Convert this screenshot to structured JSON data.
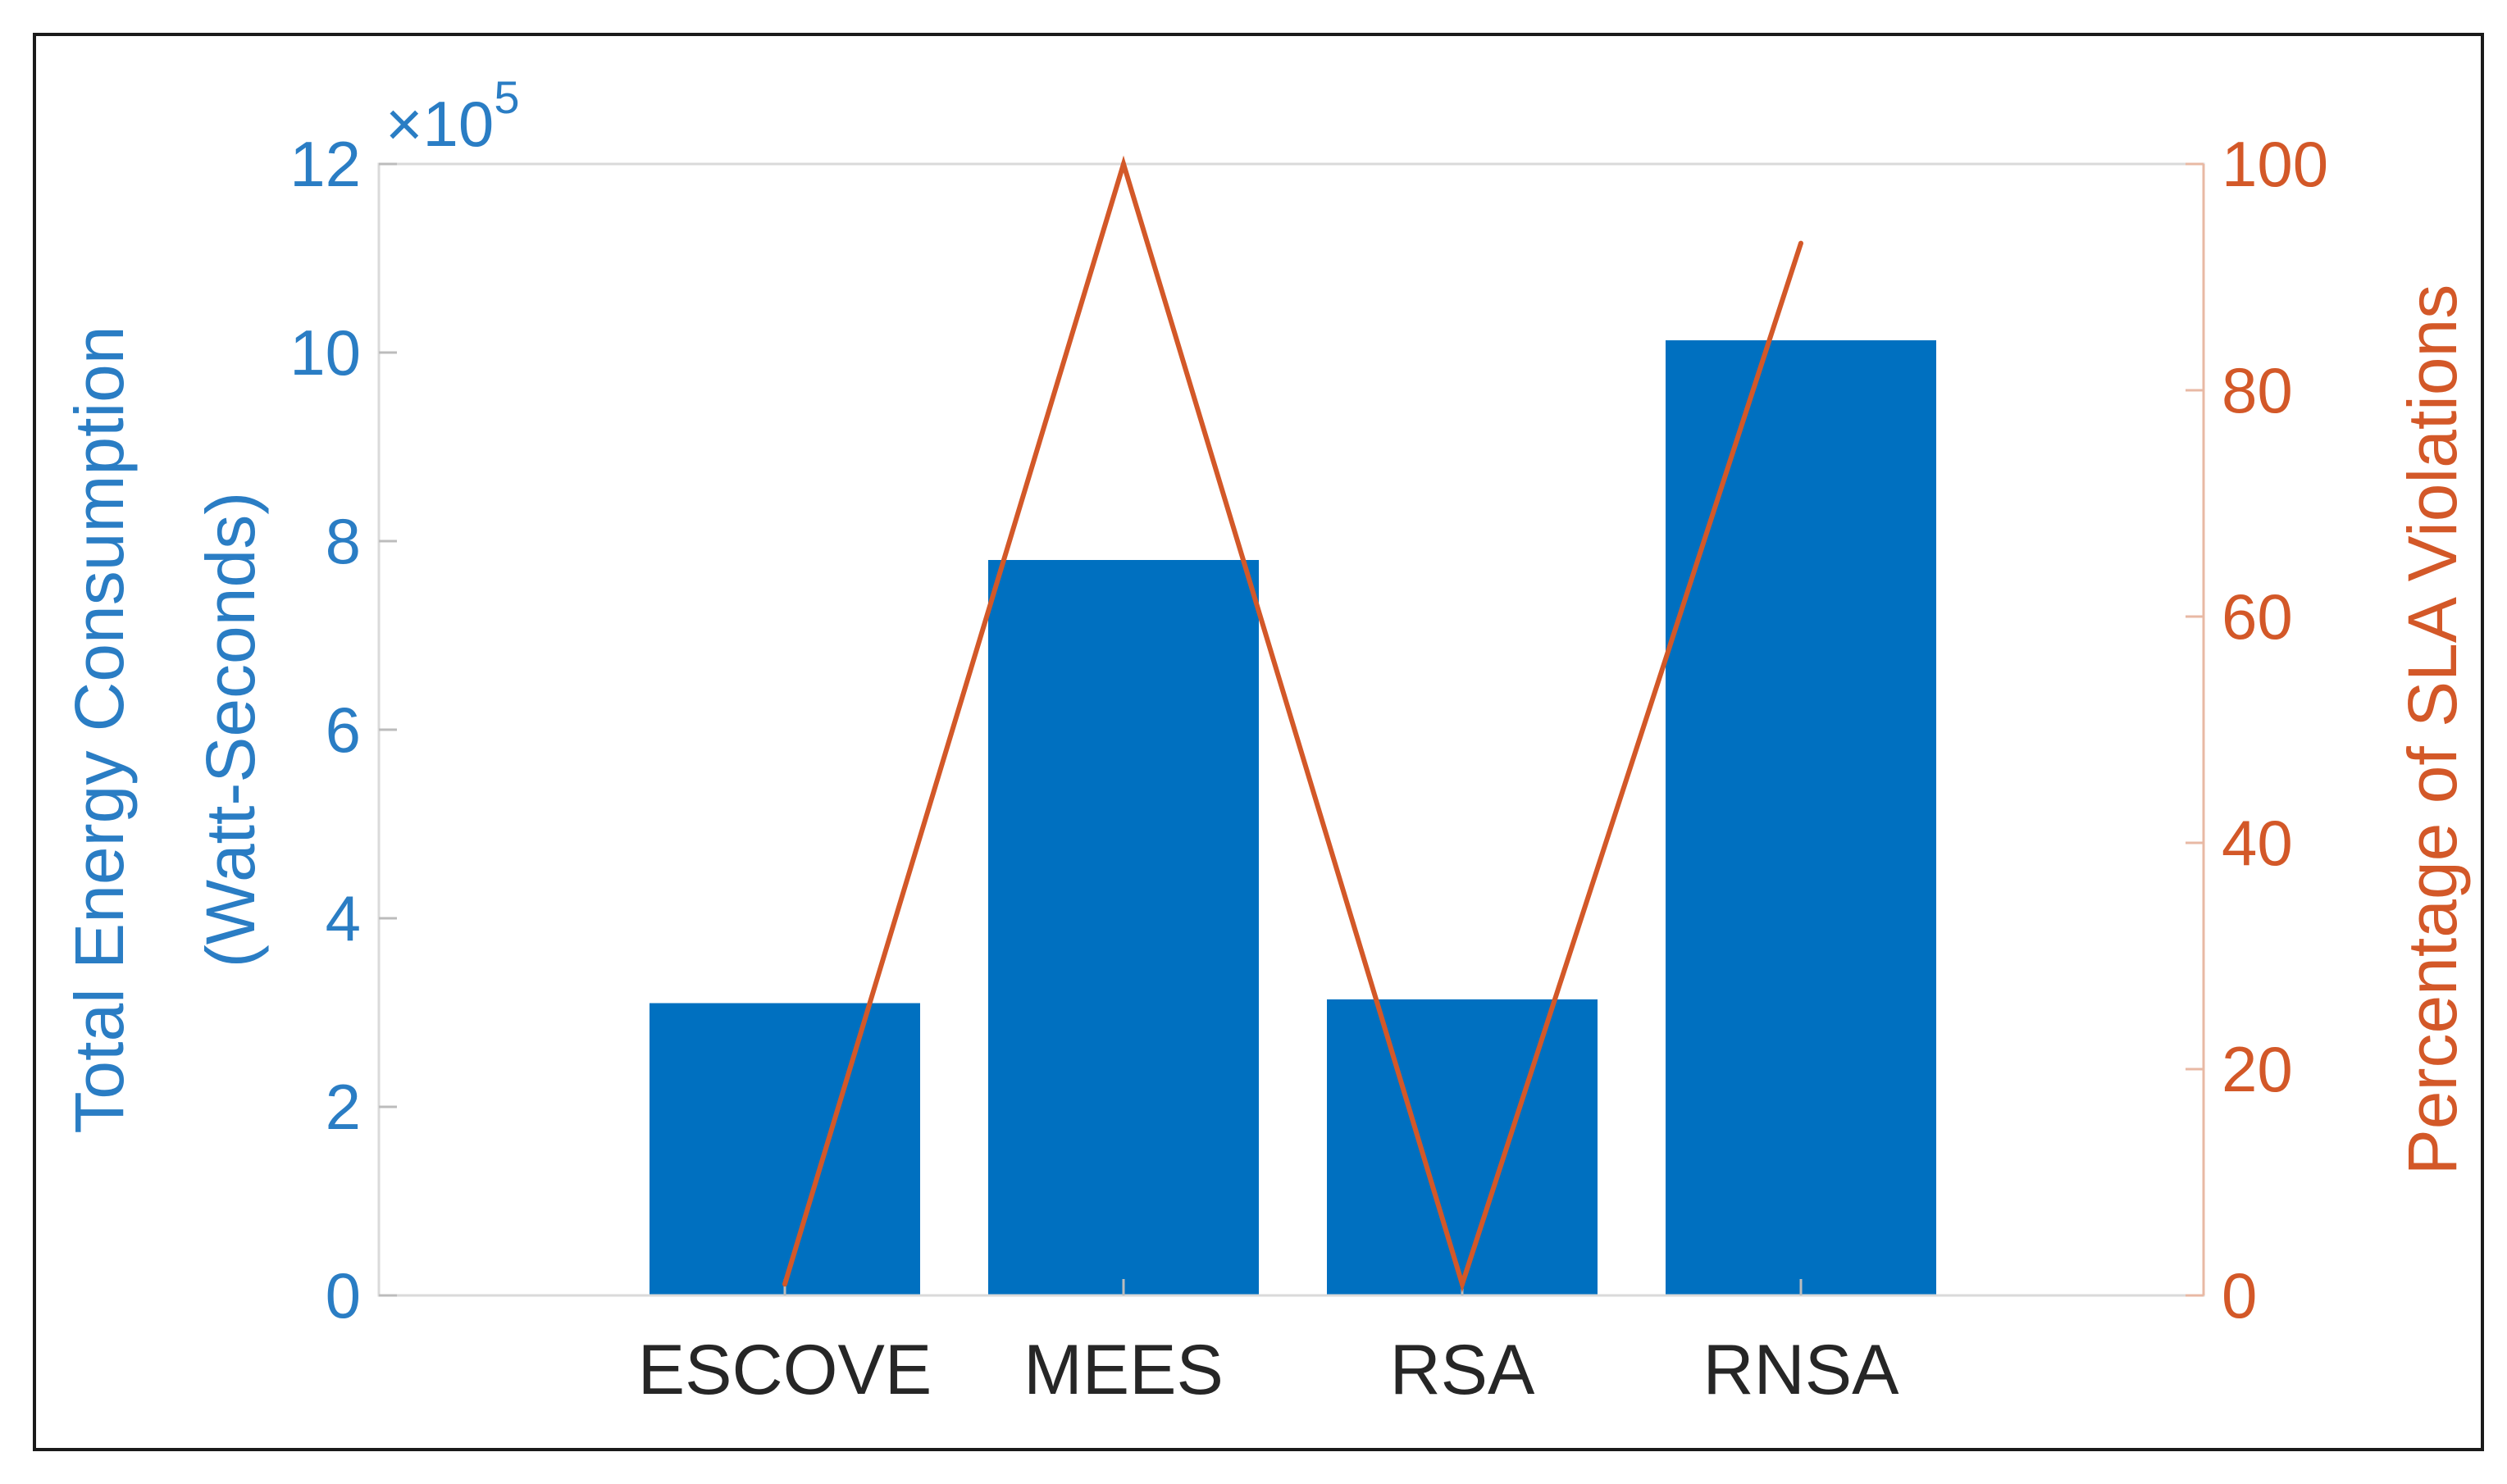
{
  "chart_data": {
    "type": "bar",
    "categories": [
      "ESCOVE",
      "MEES",
      "RSA",
      "RNSA"
    ],
    "series": [
      {
        "name": "",
        "kind": "bar",
        "axis": "left",
        "values": [
          310000,
          780000,
          314000,
          1013000
        ]
      },
      {
        "name": "",
        "kind": "line",
        "axis": "right",
        "values": [
          1,
          100,
          1,
          93
        ]
      }
    ],
    "left_axis": {
      "label_line1": "Total Energy Consumption",
      "label_line2": "(Watt-Seconds)",
      "range": [
        0,
        1200000
      ],
      "tick_values": [
        0,
        2,
        4,
        6,
        8,
        10,
        12
      ],
      "multiplier_base": "×10",
      "multiplier_exp": "5",
      "color": "#2a7dc4"
    },
    "right_axis": {
      "label": "Percentage of SLA Violations",
      "range": [
        0,
        100
      ],
      "tick_values": [
        0,
        20,
        40,
        60,
        80,
        100
      ],
      "color": "#d35828"
    },
    "bar_color": "#0070c0",
    "line_color": "#d35828",
    "grid": false,
    "legend": "none"
  }
}
